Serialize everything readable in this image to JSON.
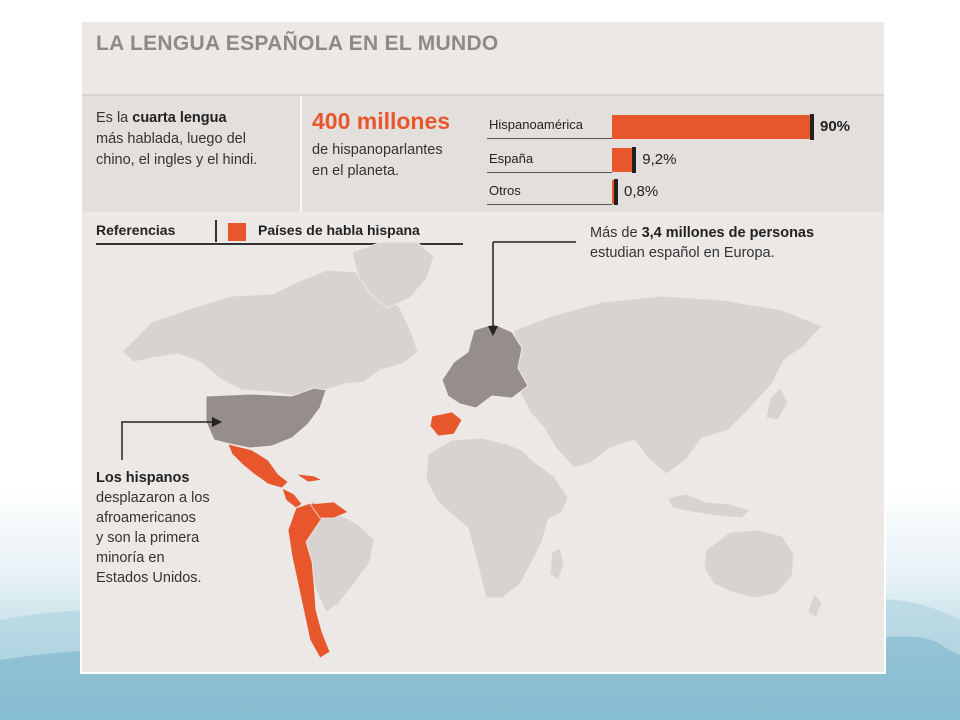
{
  "title": "LA LENGUA ESPAÑOLA EN EL MUNDO",
  "intro": {
    "prefix": "Es la ",
    "emphasis": "cuarta lengua",
    "rest_line1": "más hablada, luego del",
    "rest_line2": "chino, el ingles y el hindi."
  },
  "speakers": {
    "number": "400 millones",
    "line1": "de hispanoparlantes",
    "line2": "en el planeta."
  },
  "chart_data": {
    "type": "bar",
    "categories": [
      "Hispanoamérica",
      "España",
      "Otros"
    ],
    "values": [
      90,
      9.2,
      0.8
    ],
    "value_labels": [
      "90%",
      "9,2%",
      "0,8%"
    ],
    "xlim": [
      0,
      100
    ]
  },
  "legend": {
    "title": "Referencias",
    "item": "Países de habla hispana",
    "color": "#e8562c"
  },
  "europe_note": {
    "prefix": "Más de ",
    "emphasis": "3,4 millones de personas",
    "line2": "estudian español en Europa."
  },
  "us_note": {
    "emphasis": "Los hispanos",
    "line2": "desplazaron a los",
    "line3": "afroamericanos",
    "line4": "y son la primera",
    "line5": "minoría en",
    "line6": "Estados Unidos."
  },
  "colors": {
    "hispanic": "#e8562c",
    "highlight": "#968e8b",
    "land": "#d8d3d0",
    "background": "#ebe8e6"
  }
}
